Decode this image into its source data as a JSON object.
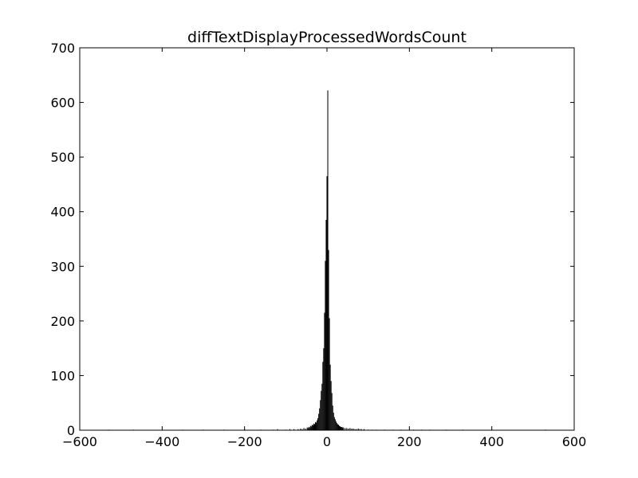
{
  "chart_data": {
    "type": "bar",
    "title": "diffTextDisplayProcessedWordsCount",
    "xlabel": "",
    "ylabel": "",
    "xlim": [
      -600,
      600
    ],
    "ylim": [
      0,
      700
    ],
    "xticks": [
      -600,
      -400,
      -200,
      0,
      200,
      400,
      600
    ],
    "xtick_labels": [
      "−600",
      "−400",
      "−200",
      "0",
      "200",
      "400",
      "600"
    ],
    "yticks": [
      0,
      100,
      200,
      300,
      400,
      500,
      600,
      700
    ],
    "ytick_labels": [
      "0",
      "100",
      "200",
      "300",
      "400",
      "500",
      "600",
      "700"
    ],
    "grid": false,
    "bar_color": "#000000",
    "bin_width": 2,
    "bins": [
      {
        "x": -530,
        "count": 1
      },
      {
        "x": -470,
        "count": 1
      },
      {
        "x": -350,
        "count": 1
      },
      {
        "x": -300,
        "count": 1
      },
      {
        "x": -250,
        "count": 1
      },
      {
        "x": -200,
        "count": 2
      },
      {
        "x": -160,
        "count": 1
      },
      {
        "x": -130,
        "count": 1
      },
      {
        "x": -120,
        "count": 2
      },
      {
        "x": -100,
        "count": 1
      },
      {
        "x": -90,
        "count": 2
      },
      {
        "x": -80,
        "count": 2
      },
      {
        "x": -70,
        "count": 2
      },
      {
        "x": -64,
        "count": 3
      },
      {
        "x": -60,
        "count": 2
      },
      {
        "x": -56,
        "count": 4
      },
      {
        "x": -52,
        "count": 3
      },
      {
        "x": -48,
        "count": 5
      },
      {
        "x": -46,
        "count": 4
      },
      {
        "x": -44,
        "count": 6
      },
      {
        "x": -42,
        "count": 5
      },
      {
        "x": -40,
        "count": 8
      },
      {
        "x": -38,
        "count": 7
      },
      {
        "x": -36,
        "count": 10
      },
      {
        "x": -34,
        "count": 9
      },
      {
        "x": -32,
        "count": 12
      },
      {
        "x": -30,
        "count": 11
      },
      {
        "x": -28,
        "count": 15
      },
      {
        "x": -26,
        "count": 14
      },
      {
        "x": -24,
        "count": 18
      },
      {
        "x": -22,
        "count": 22
      },
      {
        "x": -20,
        "count": 30
      },
      {
        "x": -18,
        "count": 40
      },
      {
        "x": -16,
        "count": 55
      },
      {
        "x": -14,
        "count": 72
      },
      {
        "x": -12,
        "count": 85
      },
      {
        "x": -10,
        "count": 125
      },
      {
        "x": -8,
        "count": 150
      },
      {
        "x": -6,
        "count": 215
      },
      {
        "x": -4,
        "count": 310
      },
      {
        "x": -2,
        "count": 385
      },
      {
        "x": 0,
        "count": 465
      },
      {
        "x": 2,
        "count": 622
      },
      {
        "x": 4,
        "count": 330
      },
      {
        "x": 6,
        "count": 205
      },
      {
        "x": 8,
        "count": 120
      },
      {
        "x": 10,
        "count": 90
      },
      {
        "x": 12,
        "count": 68
      },
      {
        "x": 14,
        "count": 45
      },
      {
        "x": 16,
        "count": 32
      },
      {
        "x": 18,
        "count": 24
      },
      {
        "x": 20,
        "count": 20
      },
      {
        "x": 22,
        "count": 16
      },
      {
        "x": 24,
        "count": 13
      },
      {
        "x": 26,
        "count": 11
      },
      {
        "x": 28,
        "count": 10
      },
      {
        "x": 30,
        "count": 8
      },
      {
        "x": 32,
        "count": 7
      },
      {
        "x": 34,
        "count": 6
      },
      {
        "x": 36,
        "count": 6
      },
      {
        "x": 38,
        "count": 5
      },
      {
        "x": 40,
        "count": 5
      },
      {
        "x": 44,
        "count": 4
      },
      {
        "x": 48,
        "count": 4
      },
      {
        "x": 52,
        "count": 3
      },
      {
        "x": 56,
        "count": 4
      },
      {
        "x": 60,
        "count": 3
      },
      {
        "x": 64,
        "count": 3
      },
      {
        "x": 68,
        "count": 2
      },
      {
        "x": 72,
        "count": 2
      },
      {
        "x": 76,
        "count": 3
      },
      {
        "x": 80,
        "count": 2
      },
      {
        "x": 84,
        "count": 2
      },
      {
        "x": 90,
        "count": 2
      },
      {
        "x": 100,
        "count": 1
      },
      {
        "x": 110,
        "count": 1
      },
      {
        "x": 120,
        "count": 1
      },
      {
        "x": 140,
        "count": 1
      },
      {
        "x": 160,
        "count": 1
      },
      {
        "x": 180,
        "count": 1
      },
      {
        "x": 210,
        "count": 1
      },
      {
        "x": 230,
        "count": 1
      },
      {
        "x": 250,
        "count": 1
      },
      {
        "x": 290,
        "count": 1
      },
      {
        "x": 330,
        "count": 1
      },
      {
        "x": 400,
        "count": 1
      },
      {
        "x": 530,
        "count": 1
      }
    ]
  }
}
